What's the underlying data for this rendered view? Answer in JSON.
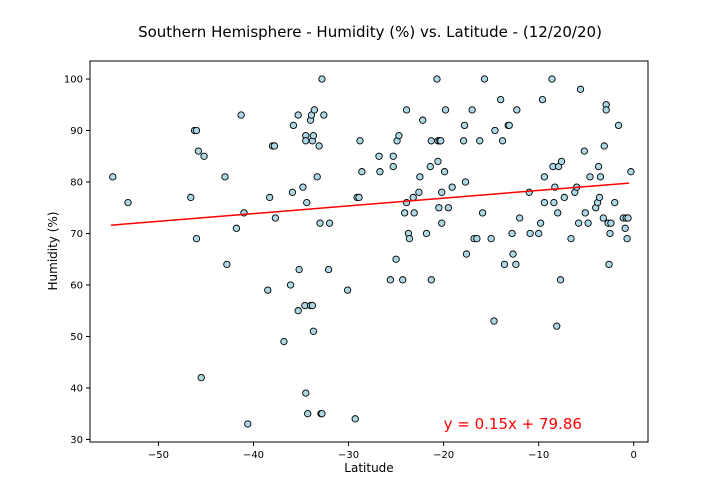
{
  "chart_data": {
    "type": "scatter",
    "title": "Southern Hemisphere - Humidity (%) vs. Latitude - (12/20/20)",
    "xlabel": "Latitude",
    "ylabel": "Humidity (%)",
    "xlim": [
      -57.2,
      1.5
    ],
    "ylim": [
      29.5,
      103.5
    ],
    "xticks": [
      -50,
      -40,
      -30,
      -20,
      -10,
      0
    ],
    "xtick_labels": [
      "−50",
      "−40",
      "−30",
      "−20",
      "−10",
      "0"
    ],
    "yticks": [
      30,
      40,
      50,
      60,
      70,
      80,
      90,
      100
    ],
    "grid": false,
    "marker_face_color": "#add8e6",
    "marker_edge_color": "#000000",
    "regression_color": "#ff0000",
    "regression": {
      "slope": 0.15,
      "intercept": 79.86,
      "x_range": [
        -55,
        -0.5
      ]
    },
    "annotation": {
      "text": "y = 0.15x + 79.86",
      "x": -20,
      "y": 33,
      "color": "#ff0000"
    },
    "series": [
      {
        "points": [
          [
            -54.8,
            81
          ],
          [
            -53.2,
            76
          ],
          [
            -46.6,
            77
          ],
          [
            -46.2,
            90
          ],
          [
            -46.0,
            90
          ],
          [
            -46.0,
            69
          ],
          [
            -45.8,
            86
          ],
          [
            -45.5,
            42
          ],
          [
            -45.2,
            85
          ],
          [
            -43.0,
            81
          ],
          [
            -42.8,
            64
          ],
          [
            -41.8,
            71
          ],
          [
            -41.3,
            93
          ],
          [
            -41.0,
            74
          ],
          [
            -40.6,
            33
          ],
          [
            -38.5,
            59
          ],
          [
            -38.3,
            77
          ],
          [
            -38.0,
            87
          ],
          [
            -37.8,
            87
          ],
          [
            -37.7,
            73
          ],
          [
            -36.8,
            49
          ],
          [
            -36.1,
            60
          ],
          [
            -35.9,
            78
          ],
          [
            -35.8,
            91
          ],
          [
            -35.3,
            93
          ],
          [
            -35.3,
            55
          ],
          [
            -35.2,
            63
          ],
          [
            -34.8,
            79
          ],
          [
            -34.6,
            56
          ],
          [
            -34.5,
            89
          ],
          [
            -34.5,
            88
          ],
          [
            -34.5,
            39
          ],
          [
            -34.4,
            76
          ],
          [
            -34.3,
            35
          ],
          [
            -34.0,
            56
          ],
          [
            -34.0,
            92
          ],
          [
            -33.9,
            93
          ],
          [
            -33.8,
            88
          ],
          [
            -33.8,
            56
          ],
          [
            -33.7,
            51
          ],
          [
            -33.7,
            89
          ],
          [
            -33.6,
            94
          ],
          [
            -33.3,
            81
          ],
          [
            -33.1,
            87
          ],
          [
            -33.0,
            72
          ],
          [
            -32.9,
            35
          ],
          [
            -32.8,
            35
          ],
          [
            -32.8,
            100
          ],
          [
            -32.6,
            93
          ],
          [
            -32.1,
            63
          ],
          [
            -32.0,
            72
          ],
          [
            -30.1,
            59
          ],
          [
            -29.3,
            34
          ],
          [
            -29.1,
            77
          ],
          [
            -28.9,
            77
          ],
          [
            -28.8,
            88
          ],
          [
            -28.6,
            82
          ],
          [
            -26.8,
            85
          ],
          [
            -26.7,
            82
          ],
          [
            -25.6,
            61
          ],
          [
            -25.3,
            85
          ],
          [
            -25.3,
            83
          ],
          [
            -25.0,
            65
          ],
          [
            -24.9,
            88
          ],
          [
            -24.7,
            89
          ],
          [
            -24.3,
            61
          ],
          [
            -24.1,
            74
          ],
          [
            -23.9,
            94
          ],
          [
            -23.9,
            76
          ],
          [
            -23.7,
            70
          ],
          [
            -23.6,
            69
          ],
          [
            -23.2,
            77
          ],
          [
            -23.1,
            74
          ],
          [
            -22.6,
            78
          ],
          [
            -22.5,
            81
          ],
          [
            -22.2,
            92
          ],
          [
            -21.8,
            70
          ],
          [
            -21.4,
            83
          ],
          [
            -21.3,
            61
          ],
          [
            -21.3,
            88
          ],
          [
            -20.7,
            100
          ],
          [
            -20.6,
            88
          ],
          [
            -20.6,
            84
          ],
          [
            -20.5,
            75
          ],
          [
            -20.4,
            88
          ],
          [
            -20.3,
            88
          ],
          [
            -20.2,
            72
          ],
          [
            -20.2,
            78
          ],
          [
            -19.9,
            82
          ],
          [
            -19.8,
            94
          ],
          [
            -19.5,
            75
          ],
          [
            -19.1,
            79
          ],
          [
            -17.9,
            88
          ],
          [
            -17.8,
            91
          ],
          [
            -17.7,
            80
          ],
          [
            -17.6,
            66
          ],
          [
            -17.0,
            94
          ],
          [
            -16.8,
            69
          ],
          [
            -16.5,
            69
          ],
          [
            -16.2,
            88
          ],
          [
            -15.9,
            74
          ],
          [
            -15.7,
            100
          ],
          [
            -15.0,
            69
          ],
          [
            -14.7,
            53
          ],
          [
            -14.6,
            90
          ],
          [
            -14.0,
            96
          ],
          [
            -13.8,
            88
          ],
          [
            -13.6,
            64
          ],
          [
            -13.2,
            91
          ],
          [
            -13.1,
            91
          ],
          [
            -12.8,
            70
          ],
          [
            -12.7,
            66
          ],
          [
            -12.4,
            64
          ],
          [
            -12.3,
            94
          ],
          [
            -12.0,
            73
          ],
          [
            -11.0,
            78
          ],
          [
            -10.9,
            70
          ],
          [
            -10.0,
            70
          ],
          [
            -9.8,
            72
          ],
          [
            -9.6,
            96
          ],
          [
            -9.4,
            81
          ],
          [
            -9.4,
            76
          ],
          [
            -8.6,
            100
          ],
          [
            -8.5,
            83
          ],
          [
            -8.4,
            76
          ],
          [
            -8.3,
            79
          ],
          [
            -8.1,
            52
          ],
          [
            -8.0,
            74
          ],
          [
            -7.9,
            83
          ],
          [
            -7.7,
            61
          ],
          [
            -7.6,
            84
          ],
          [
            -7.3,
            77
          ],
          [
            -6.6,
            69
          ],
          [
            -6.2,
            78
          ],
          [
            -6.0,
            79
          ],
          [
            -5.8,
            72
          ],
          [
            -5.6,
            98
          ],
          [
            -5.2,
            86
          ],
          [
            -5.1,
            74
          ],
          [
            -4.8,
            72
          ],
          [
            -4.6,
            81
          ],
          [
            -4.0,
            75
          ],
          [
            -3.8,
            76
          ],
          [
            -3.7,
            83
          ],
          [
            -3.6,
            77
          ],
          [
            -3.5,
            81
          ],
          [
            -3.2,
            73
          ],
          [
            -3.1,
            87
          ],
          [
            -2.9,
            95
          ],
          [
            -2.9,
            94
          ],
          [
            -2.7,
            72
          ],
          [
            -2.6,
            64
          ],
          [
            -2.5,
            70
          ],
          [
            -2.4,
            72
          ],
          [
            -2.0,
            76
          ],
          [
            -1.6,
            91
          ],
          [
            -1.1,
            73
          ],
          [
            -0.9,
            71
          ],
          [
            -0.8,
            73
          ],
          [
            -0.7,
            69
          ],
          [
            -0.6,
            73
          ],
          [
            -0.3,
            82
          ]
        ]
      }
    ]
  }
}
